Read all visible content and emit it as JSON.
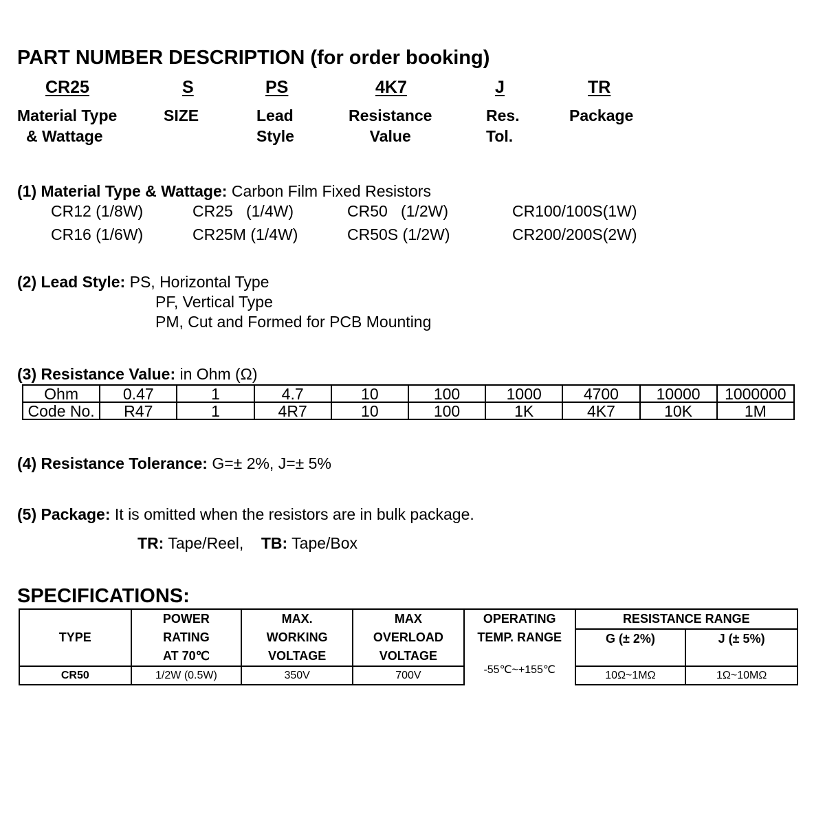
{
  "title": "PART NUMBER DESCRIPTION (for order booking)",
  "example": [
    {
      "code": "CR25",
      "label": [
        "Material Type",
        "& Wattage"
      ]
    },
    {
      "code": "S",
      "label": [
        "SIZE"
      ]
    },
    {
      "code": "PS",
      "label": [
        "Lead",
        "Style"
      ]
    },
    {
      "code": "4K7",
      "label": [
        "Resistance",
        "Value"
      ]
    },
    {
      "code": "J",
      "label": [
        "Res.",
        "Tol."
      ]
    },
    {
      "code": "TR",
      "label": [
        "Package"
      ]
    }
  ],
  "s1": {
    "heading": "(1) Material Type & Wattage:",
    "text": "Carbon Film Fixed Resistors",
    "items": [
      "CR12 (1/8W)",
      "CR25   (1/4W)",
      "CR50   (1/2W)",
      "CR100/100S(1W)",
      "CR16 (1/6W)",
      "CR25M (1/4W)",
      "CR50S (1/2W)",
      "CR200/200S(2W)"
    ]
  },
  "s2": {
    "heading": "(2) Lead Style:",
    "lines": [
      "PS, Horizontal Type",
      "PF, Vertical Type",
      "PM, Cut and Formed for PCB Mounting"
    ]
  },
  "s3": {
    "heading": "(3) Resistance Value:",
    "text": "in Ohm (Ω)",
    "rows": [
      [
        "Ohm",
        "0.47",
        "1",
        "4.7",
        "10",
        "100",
        "1000",
        "4700",
        "10000",
        "1000000"
      ],
      [
        "Code No.",
        "R47",
        "1",
        "4R7",
        "10",
        "100",
        "1K",
        "4K7",
        "10K",
        "1M"
      ]
    ]
  },
  "s4": {
    "heading": "(4) Resistance Tolerance:",
    "text": "G=± 2%, J=± 5%"
  },
  "s5": {
    "heading": "(5) Package:",
    "text": "It is omitted when the resistors are in bulk package.",
    "tr_label": "TR:",
    "tr_text": "Tape/Reel,",
    "tb_label": "TB:",
    "tb_text": "Tape/Box"
  },
  "specs": {
    "heading": "SPECIFICATIONS:",
    "headers": {
      "type": "TYPE",
      "power": [
        "POWER",
        "RATING",
        "AT 70℃"
      ],
      "working": [
        "MAX.",
        "WORKING",
        "VOLTAGE"
      ],
      "overload": [
        "MAX",
        "OVERLOAD",
        "VOLTAGE"
      ],
      "temp": [
        "OPERATING",
        "TEMP. RANGE"
      ],
      "range": "RESISTANCE RANGE",
      "g": "G (± 2%)",
      "j": "J (± 5%)"
    },
    "row": {
      "type": "CR50",
      "power": "1/2W (0.5W)",
      "working": "350V",
      "overload": "700V",
      "temp": "-55℃~+155℃",
      "g": "10Ω~1MΩ",
      "j": "1Ω~10MΩ"
    }
  }
}
